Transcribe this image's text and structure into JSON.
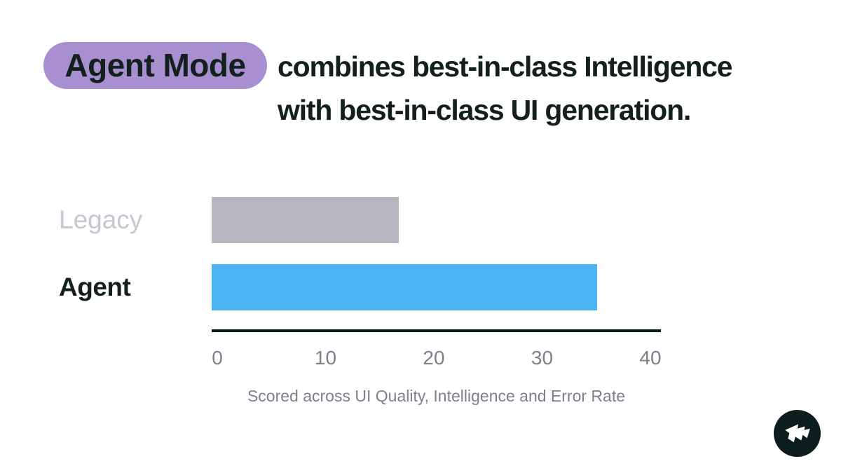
{
  "badge": {
    "label": "Agent Mode"
  },
  "title": {
    "line1": "combines best-in-class Intelligence",
    "line2": "with best-in-class UI generation."
  },
  "colors": {
    "background": "#ffffff",
    "badge_bg": "#a88fd0",
    "text_dark": "#13201d",
    "axis": "#0e1b1e",
    "tick_label": "#7f7f8b",
    "caption": "#7f7f8b",
    "logo_bg": "#0d1c1c",
    "logo_glyph": "#ffffff"
  },
  "chart_data": {
    "type": "bar",
    "orientation": "horizontal",
    "categories": [
      "Legacy",
      "Agent"
    ],
    "values": [
      17,
      35
    ],
    "bar_colors": [
      "#b7b7c1",
      "#4db4f4"
    ],
    "category_label_colors": [
      "#c7c7d3",
      "#13201d"
    ],
    "x_ticks": [
      0,
      10,
      20,
      30,
      40
    ],
    "xlim": [
      0,
      40
    ],
    "xlabel": "Scored across UI Quality, Intelligence and Error Rate",
    "grid": false,
    "legend": false
  },
  "footer": {
    "logo_icon": "flag-icon"
  }
}
